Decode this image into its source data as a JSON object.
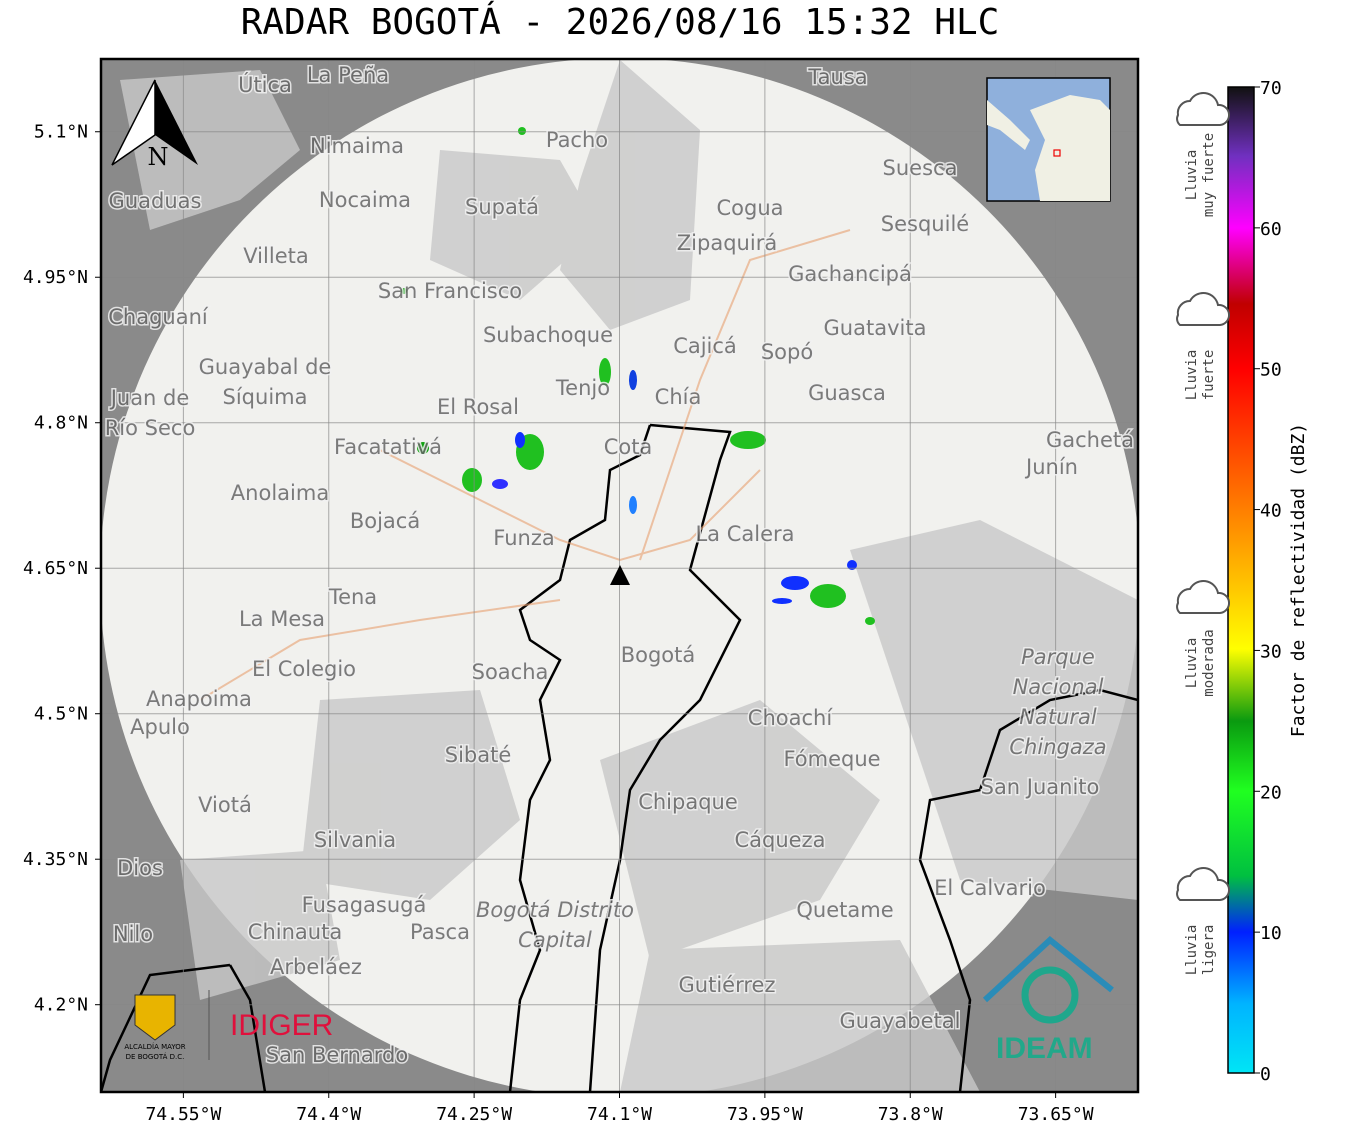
{
  "header": {
    "title": "RADAR BOGOTÁ - 2026/08/16 15:32 HLC"
  },
  "map": {
    "xlim": [
      -74.635,
      -73.565
    ],
    "ylim": [
      4.11,
      5.175
    ],
    "xticks": [
      {
        "value": -74.55,
        "label": "74.55°W"
      },
      {
        "value": -74.4,
        "label": "74.4°W"
      },
      {
        "value": -74.25,
        "label": "74.25°W"
      },
      {
        "value": -74.1,
        "label": "74.1°W"
      },
      {
        "value": -73.95,
        "label": "73.95°W"
      },
      {
        "value": -73.8,
        "label": "73.8°W"
      },
      {
        "value": -73.65,
        "label": "73.65°W"
      }
    ],
    "yticks": [
      {
        "value": 5.1,
        "label": "5.1°N"
      },
      {
        "value": 4.95,
        "label": "4.95°N"
      },
      {
        "value": 4.8,
        "label": "4.8°N"
      },
      {
        "value": 4.65,
        "label": "4.65°N"
      },
      {
        "value": 4.5,
        "label": "4.5°N"
      },
      {
        "value": 4.35,
        "label": "4.35°N"
      },
      {
        "value": 4.2,
        "label": "4.2°N"
      }
    ],
    "north": "N",
    "places": [
      "La Peña",
      "Útica",
      "Tausa",
      "Pacho",
      "Nimaima",
      "Suesca",
      "Guaduas",
      "Nocaima",
      "Supatá",
      "Cogua",
      "Sesquilé",
      "Zipaquirá",
      "Villeta",
      "Gachancipá",
      "San Francisco",
      "Chaguaní",
      "Guatavita",
      "Subachoque",
      "Cajicá",
      "Sopó",
      "Guayabal de",
      "Síquima",
      "Tenjo",
      "Chía",
      "Guasca",
      "Juan de",
      "Río Seco",
      "El Rosal",
      "Cota",
      "Facatativá",
      "Gachetá",
      "Junín",
      "Anolaima",
      "Bojacá",
      "Funza",
      "La Calera",
      "Tena",
      "La Mesa",
      "Bogotá",
      "Soacha",
      "El Colegio",
      "Anapoima",
      "Apulo",
      "Choachí",
      "Sibaté",
      "Fómeque",
      "San Juanito",
      "Chipaque",
      "Viotá",
      "Silvania",
      "Cáqueza",
      "Dios",
      "El Calvario",
      "Fusagasugá",
      "Quetame",
      "Pasca",
      "Chinauta",
      "Nilo",
      "Arbeláez",
      "Gutiérrez",
      "Guayabetal",
      "San Bernardo"
    ],
    "parks": [
      "Parque",
      "Nacional",
      "Natural",
      "Chingaza",
      "Bogotá Distrito",
      "Capital"
    ]
  },
  "colorbar": {
    "label": "Factor de reflectividad (dBZ)",
    "lim": [
      0,
      70
    ],
    "ticks": [
      0,
      10,
      20,
      30,
      40,
      50,
      60,
      70
    ]
  },
  "rain_levels": [
    [
      "Lluvia",
      "muy fuerte"
    ],
    [
      "Lluvia",
      "fuerte"
    ],
    [
      "Lluvia",
      "moderada"
    ],
    [
      "Lluvia",
      "ligera"
    ]
  ],
  "logos": {
    "alcaldia": [
      "ALCALDÍA MAYOR",
      "DE BOGOTÁ D.C."
    ],
    "idiger": "IDIGER",
    "ideam": "IDEAM"
  }
}
